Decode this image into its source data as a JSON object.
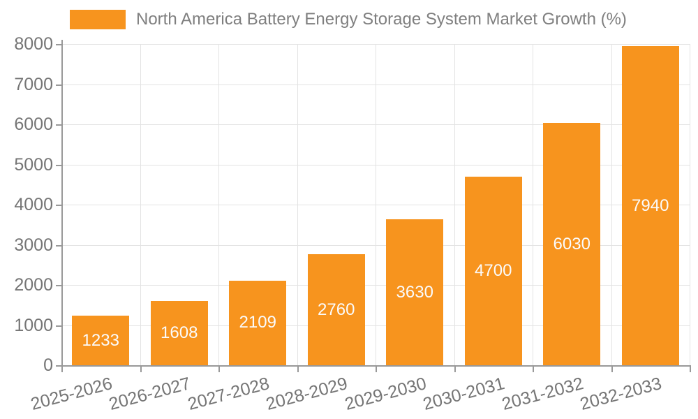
{
  "legend": {
    "label": "North America Battery Energy Storage System Market Growth (%)"
  },
  "colors": {
    "bar": "#F7941E",
    "grid": "#E3E3E3",
    "axis": "#999999",
    "tick_label": "#757575",
    "legend_text": "#7F7F7F",
    "value_label": "#FBFBFB",
    "background": "#FFFFFF"
  },
  "chart_data": {
    "type": "bar",
    "title": "North America Battery Energy Storage System Market Growth (%)",
    "categories": [
      "2025-2026",
      "2026-2027",
      "2027-2028",
      "2028-2029",
      "2029-2030",
      "2030-2031",
      "2031-2032",
      "2032-2033"
    ],
    "values": [
      1233,
      1608,
      2109,
      2760,
      3630,
      4700,
      6030,
      7940
    ],
    "value_labels": [
      "1233",
      "1608",
      "2109",
      "2760",
      "3630",
      "4700",
      "6030",
      "7940"
    ],
    "xlabel": "",
    "ylabel": "",
    "ylim": [
      0,
      8000
    ],
    "yticks": [
      0,
      1000,
      2000,
      3000,
      4000,
      5000,
      6000,
      7000,
      8000
    ],
    "ytick_labels": [
      "0",
      "1000",
      "2000",
      "3000",
      "4000",
      "5000",
      "6000",
      "7000",
      "8000"
    ],
    "grid": true,
    "legend_position": "top",
    "value_labels_shown": true,
    "xtick_rotation_deg": -15
  }
}
